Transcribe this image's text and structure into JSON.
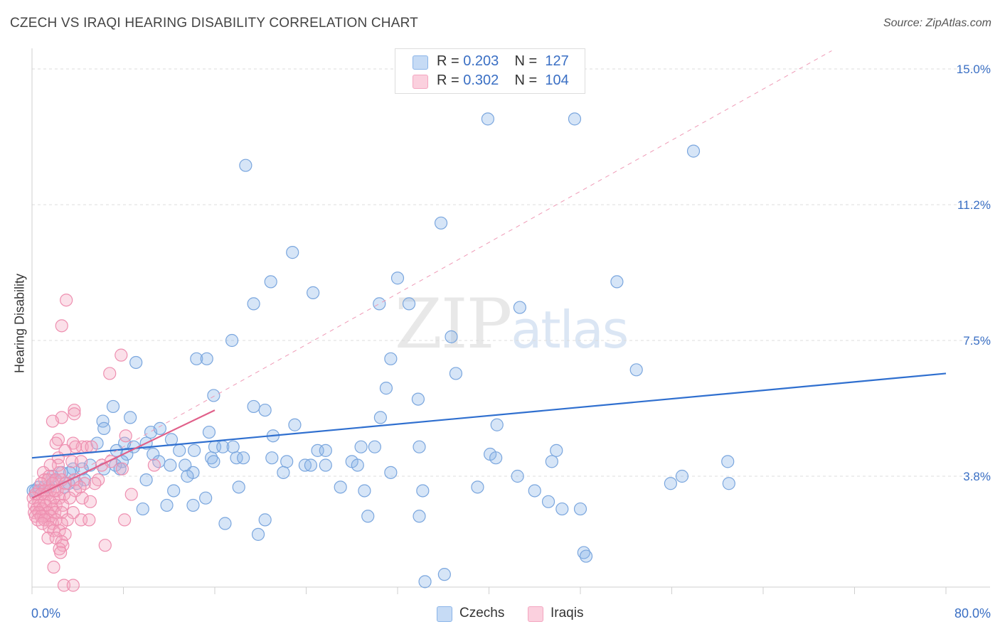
{
  "title": "CZECH VS IRAQI HEARING DISABILITY CORRELATION CHART",
  "source": "Source: ZipAtlas.com",
  "watermark": {
    "zip": "ZIP",
    "atlas": "atlas"
  },
  "colors": {
    "czech": "#8ab4e8",
    "czech_line": "#2f6fcf",
    "iraqi": "#f4a6c0",
    "iraqi_line": "#e0608a",
    "axis_text": "#3a6fc4"
  },
  "legend": {
    "rows": [
      {
        "r_label": "R =",
        "r_value": "0.203",
        "n_label": "N =",
        "n_value": "127"
      },
      {
        "r_label": "R =",
        "r_value": "0.302",
        "n_label": "N =",
        "n_value": "104"
      }
    ],
    "bottom": [
      "Czechs",
      "Iraqis"
    ]
  },
  "chart_data": {
    "type": "scatter",
    "title": "CZECH VS IRAQI HEARING DISABILITY CORRELATION CHART",
    "xlabel": "",
    "ylabel": "Hearing Disability",
    "xlim": [
      0,
      80
    ],
    "ylim": [
      0,
      15.5
    ],
    "x_tick_labels": [
      "0.0%",
      "80.0%"
    ],
    "y_ticks": [
      3.8,
      7.5,
      11.2,
      15.0
    ],
    "y_tick_labels": [
      "3.8%",
      "7.5%",
      "11.2%",
      "15.0%"
    ],
    "grid": true,
    "legend_placement": "top-center",
    "series": [
      {
        "name": "Czechs",
        "trend": [
          [
            0,
            4.3
          ],
          [
            80,
            6.6
          ]
        ],
        "points": [
          [
            39.9,
            13.6
          ],
          [
            47.5,
            13.6
          ],
          [
            18.7,
            12.3
          ],
          [
            57.9,
            12.7
          ],
          [
            35.8,
            10.7
          ],
          [
            22.8,
            9.9
          ],
          [
            20.9,
            9.1
          ],
          [
            32.0,
            9.2
          ],
          [
            51.2,
            9.1
          ],
          [
            24.6,
            8.8
          ],
          [
            19.4,
            8.5
          ],
          [
            30.4,
            8.5
          ],
          [
            33.0,
            8.5
          ],
          [
            42.7,
            8.4
          ],
          [
            36.7,
            7.6
          ],
          [
            17.5,
            7.5
          ],
          [
            31.4,
            7.0
          ],
          [
            14.4,
            7.0
          ],
          [
            15.3,
            7.0
          ],
          [
            9.1,
            6.9
          ],
          [
            37.1,
            6.6
          ],
          [
            52.9,
            6.7
          ],
          [
            31.0,
            6.2
          ],
          [
            15.9,
            6.0
          ],
          [
            33.8,
            5.9
          ],
          [
            19.4,
            5.7
          ],
          [
            7.1,
            5.7
          ],
          [
            20.4,
            5.6
          ],
          [
            8.6,
            5.4
          ],
          [
            23.0,
            5.2
          ],
          [
            30.5,
            5.4
          ],
          [
            40.7,
            5.2
          ],
          [
            6.2,
            5.3
          ],
          [
            15.5,
            5.0
          ],
          [
            6.3,
            5.1
          ],
          [
            10.4,
            5.0
          ],
          [
            11.2,
            5.1
          ],
          [
            21.1,
            4.9
          ],
          [
            12.2,
            4.8
          ],
          [
            5.7,
            4.7
          ],
          [
            10.0,
            4.7
          ],
          [
            8.9,
            4.6
          ],
          [
            8.1,
            4.7
          ],
          [
            7.4,
            4.5
          ],
          [
            10.6,
            4.4
          ],
          [
            14.2,
            4.5
          ],
          [
            12.9,
            4.5
          ],
          [
            16.0,
            4.6
          ],
          [
            16.7,
            4.6
          ],
          [
            17.6,
            4.6
          ],
          [
            25.0,
            4.5
          ],
          [
            25.7,
            4.5
          ],
          [
            28.8,
            4.6
          ],
          [
            33.9,
            4.6
          ],
          [
            30.0,
            4.6
          ],
          [
            45.9,
            4.5
          ],
          [
            40.1,
            4.4
          ],
          [
            40.6,
            4.3
          ],
          [
            17.9,
            4.3
          ],
          [
            21.0,
            4.3
          ],
          [
            15.7,
            4.3
          ],
          [
            18.5,
            4.3
          ],
          [
            8.3,
            4.4
          ],
          [
            7.9,
            4.2
          ],
          [
            11.1,
            4.2
          ],
          [
            15.9,
            4.2
          ],
          [
            22.3,
            4.2
          ],
          [
            25.7,
            4.1
          ],
          [
            28.0,
            4.2
          ],
          [
            28.5,
            4.1
          ],
          [
            45.5,
            4.2
          ],
          [
            60.9,
            4.2
          ],
          [
            23.9,
            4.1
          ],
          [
            24.4,
            4.1
          ],
          [
            12.1,
            4.1
          ],
          [
            13.4,
            4.1
          ],
          [
            7.3,
            4.1
          ],
          [
            5.1,
            4.1
          ],
          [
            7.7,
            4.0
          ],
          [
            6.3,
            4.0
          ],
          [
            4.4,
            4.0
          ],
          [
            3.6,
            4.0
          ],
          [
            3.3,
            3.9
          ],
          [
            2.6,
            3.9
          ],
          [
            1.8,
            3.8
          ],
          [
            22.0,
            3.9
          ],
          [
            14.1,
            3.9
          ],
          [
            31.4,
            3.9
          ],
          [
            42.5,
            3.8
          ],
          [
            56.9,
            3.8
          ],
          [
            10.0,
            3.7
          ],
          [
            13.6,
            3.8
          ],
          [
            4.6,
            3.7
          ],
          [
            3.9,
            3.6
          ],
          [
            3.2,
            3.6
          ],
          [
            2.0,
            3.7
          ],
          [
            2.8,
            3.5
          ],
          [
            1.5,
            3.5
          ],
          [
            1.1,
            3.5
          ],
          [
            0.6,
            3.5
          ],
          [
            0.3,
            3.4
          ],
          [
            0.1,
            3.4
          ],
          [
            18.1,
            3.5
          ],
          [
            27.0,
            3.5
          ],
          [
            29.1,
            3.4
          ],
          [
            34.2,
            3.4
          ],
          [
            39.0,
            3.5
          ],
          [
            44.0,
            3.4
          ],
          [
            55.9,
            3.6
          ],
          [
            61.0,
            3.6
          ],
          [
            12.4,
            3.4
          ],
          [
            15.2,
            3.2
          ],
          [
            11.8,
            3.0
          ],
          [
            14.1,
            3.0
          ],
          [
            9.7,
            2.9
          ],
          [
            45.2,
            3.1
          ],
          [
            46.4,
            2.9
          ],
          [
            48.0,
            2.9
          ],
          [
            29.4,
            2.7
          ],
          [
            33.9,
            2.7
          ],
          [
            20.4,
            2.6
          ],
          [
            16.9,
            2.5
          ],
          [
            19.8,
            2.2
          ],
          [
            48.3,
            1.7
          ],
          [
            48.5,
            1.6
          ],
          [
            36.1,
            1.1
          ],
          [
            34.4,
            0.9
          ]
        ]
      },
      {
        "name": "Iraqis",
        "trend": [
          [
            0,
            3.2
          ],
          [
            16,
            5.6
          ]
        ],
        "trend_extended": [
          [
            0,
            3.2
          ],
          [
            70,
            15.5
          ]
        ],
        "points": [
          [
            3.0,
            8.6
          ],
          [
            2.6,
            7.9
          ],
          [
            7.8,
            7.1
          ],
          [
            6.8,
            6.6
          ],
          [
            3.7,
            5.6
          ],
          [
            3.7,
            5.5
          ],
          [
            2.6,
            5.4
          ],
          [
            1.8,
            5.3
          ],
          [
            8.2,
            4.9
          ],
          [
            2.3,
            4.8
          ],
          [
            2.1,
            4.7
          ],
          [
            3.6,
            4.7
          ],
          [
            4.4,
            4.6
          ],
          [
            4.8,
            4.6
          ],
          [
            5.2,
            4.6
          ],
          [
            3.8,
            4.6
          ],
          [
            2.9,
            4.5
          ],
          [
            2.3,
            4.3
          ],
          [
            2.3,
            4.1
          ],
          [
            3.5,
            4.2
          ],
          [
            4.3,
            4.2
          ],
          [
            6.1,
            4.1
          ],
          [
            6.9,
            4.2
          ],
          [
            7.9,
            4.0
          ],
          [
            10.7,
            4.1
          ],
          [
            1.6,
            4.1
          ],
          [
            2.4,
            3.9
          ],
          [
            1.0,
            3.9
          ],
          [
            1.5,
            3.8
          ],
          [
            1.1,
            3.7
          ],
          [
            1.4,
            3.7
          ],
          [
            2.1,
            3.7
          ],
          [
            2.6,
            3.7
          ],
          [
            3.7,
            3.7
          ],
          [
            4.6,
            3.6
          ],
          [
            5.8,
            3.7
          ],
          [
            0.8,
            3.6
          ],
          [
            1.8,
            3.6
          ],
          [
            2.9,
            3.6
          ],
          [
            4.2,
            3.5
          ],
          [
            0.6,
            3.4
          ],
          [
            1.1,
            3.4
          ],
          [
            1.6,
            3.4
          ],
          [
            2.2,
            3.4
          ],
          [
            2.8,
            3.3
          ],
          [
            3.8,
            3.4
          ],
          [
            0.3,
            3.3
          ],
          [
            0.8,
            3.3
          ],
          [
            1.3,
            3.3
          ],
          [
            1.9,
            3.2
          ],
          [
            2.4,
            3.2
          ],
          [
            3.3,
            3.2
          ],
          [
            4.4,
            3.2
          ],
          [
            5.1,
            3.1
          ],
          [
            0.1,
            3.2
          ],
          [
            0.6,
            3.1
          ],
          [
            1.1,
            3.1
          ],
          [
            1.6,
            3.1
          ],
          [
            2.1,
            3.0
          ],
          [
            2.7,
            3.0
          ],
          [
            0.2,
            3.0
          ],
          [
            0.7,
            3.0
          ],
          [
            1.2,
            3.0
          ],
          [
            1.8,
            2.9
          ],
          [
            0.4,
            2.9
          ],
          [
            0.9,
            2.9
          ],
          [
            1.4,
            2.8
          ],
          [
            2.0,
            2.8
          ],
          [
            2.6,
            2.8
          ],
          [
            0.2,
            2.8
          ],
          [
            0.6,
            2.8
          ],
          [
            1.0,
            2.7
          ],
          [
            1.6,
            2.7
          ],
          [
            3.6,
            2.8
          ],
          [
            0.3,
            2.7
          ],
          [
            0.8,
            2.7
          ],
          [
            1.4,
            2.6
          ],
          [
            2.1,
            2.6
          ],
          [
            3.1,
            2.6
          ],
          [
            4.3,
            2.6
          ],
          [
            0.5,
            2.6
          ],
          [
            1.1,
            2.6
          ],
          [
            1.8,
            2.5
          ],
          [
            2.6,
            2.5
          ],
          [
            8.1,
            2.6
          ],
          [
            5.0,
            2.6
          ],
          [
            0.9,
            2.5
          ],
          [
            1.5,
            2.4
          ],
          [
            1.9,
            2.3
          ],
          [
            2.4,
            2.3
          ],
          [
            2.9,
            2.2
          ],
          [
            1.4,
            2.1
          ],
          [
            2.1,
            2.1
          ],
          [
            2.6,
            2.0
          ],
          [
            2.7,
            1.9
          ],
          [
            2.4,
            1.8
          ],
          [
            6.4,
            1.9
          ],
          [
            2.5,
            1.7
          ],
          [
            1.9,
            1.3
          ],
          [
            2.8,
            0.8
          ],
          [
            3.6,
            0.8
          ],
          [
            8.7,
            3.3
          ],
          [
            2.0,
            3.4
          ],
          [
            5.5,
            3.6
          ]
        ]
      }
    ]
  }
}
